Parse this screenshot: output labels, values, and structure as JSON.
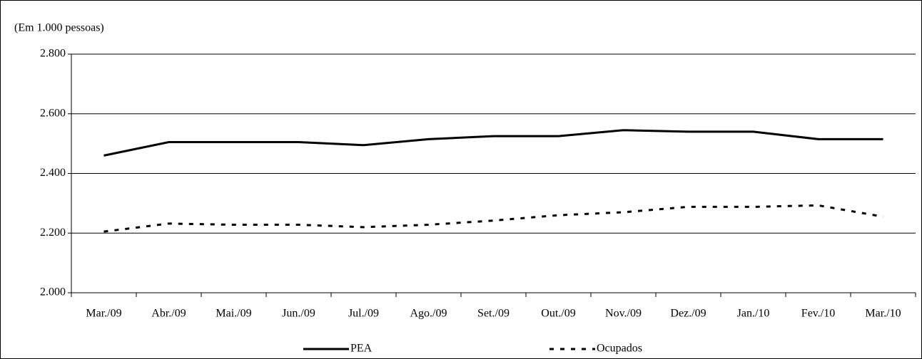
{
  "chart_data": {
    "type": "line",
    "y_axis_label": "(Em 1.000 pessoas)",
    "categories": [
      "Mar./09",
      "Abr./09",
      "Mai./09",
      "Jun./09",
      "Jul./09",
      "Ago./09",
      "Set./09",
      "Out./09",
      "Nov./09",
      "Dez./09",
      "Jan./10",
      "Fev./10",
      "Mar./10"
    ],
    "series": [
      {
        "name": "PEA",
        "color": "#000000",
        "style": "solid",
        "values": [
          2460,
          2505,
          2505,
          2505,
          2495,
          2515,
          2525,
          2525,
          2545,
          2540,
          2540,
          2515,
          2515
        ]
      },
      {
        "name": "Ocupados",
        "color": "#000000",
        "style": "dotted",
        "values": [
          2205,
          2232,
          2228,
          2228,
          2220,
          2228,
          2242,
          2260,
          2270,
          2288,
          2288,
          2293,
          2255
        ]
      }
    ],
    "ylim": [
      2000,
      2800
    ],
    "yticks": [
      {
        "value": 2000,
        "label": "2.000"
      },
      {
        "value": 2200,
        "label": "2.200"
      },
      {
        "value": 2400,
        "label": "2.400"
      },
      {
        "value": 2600,
        "label": "2.600"
      },
      {
        "value": 2800,
        "label": "2.800"
      }
    ],
    "grid": true,
    "legend": "bottom"
  }
}
